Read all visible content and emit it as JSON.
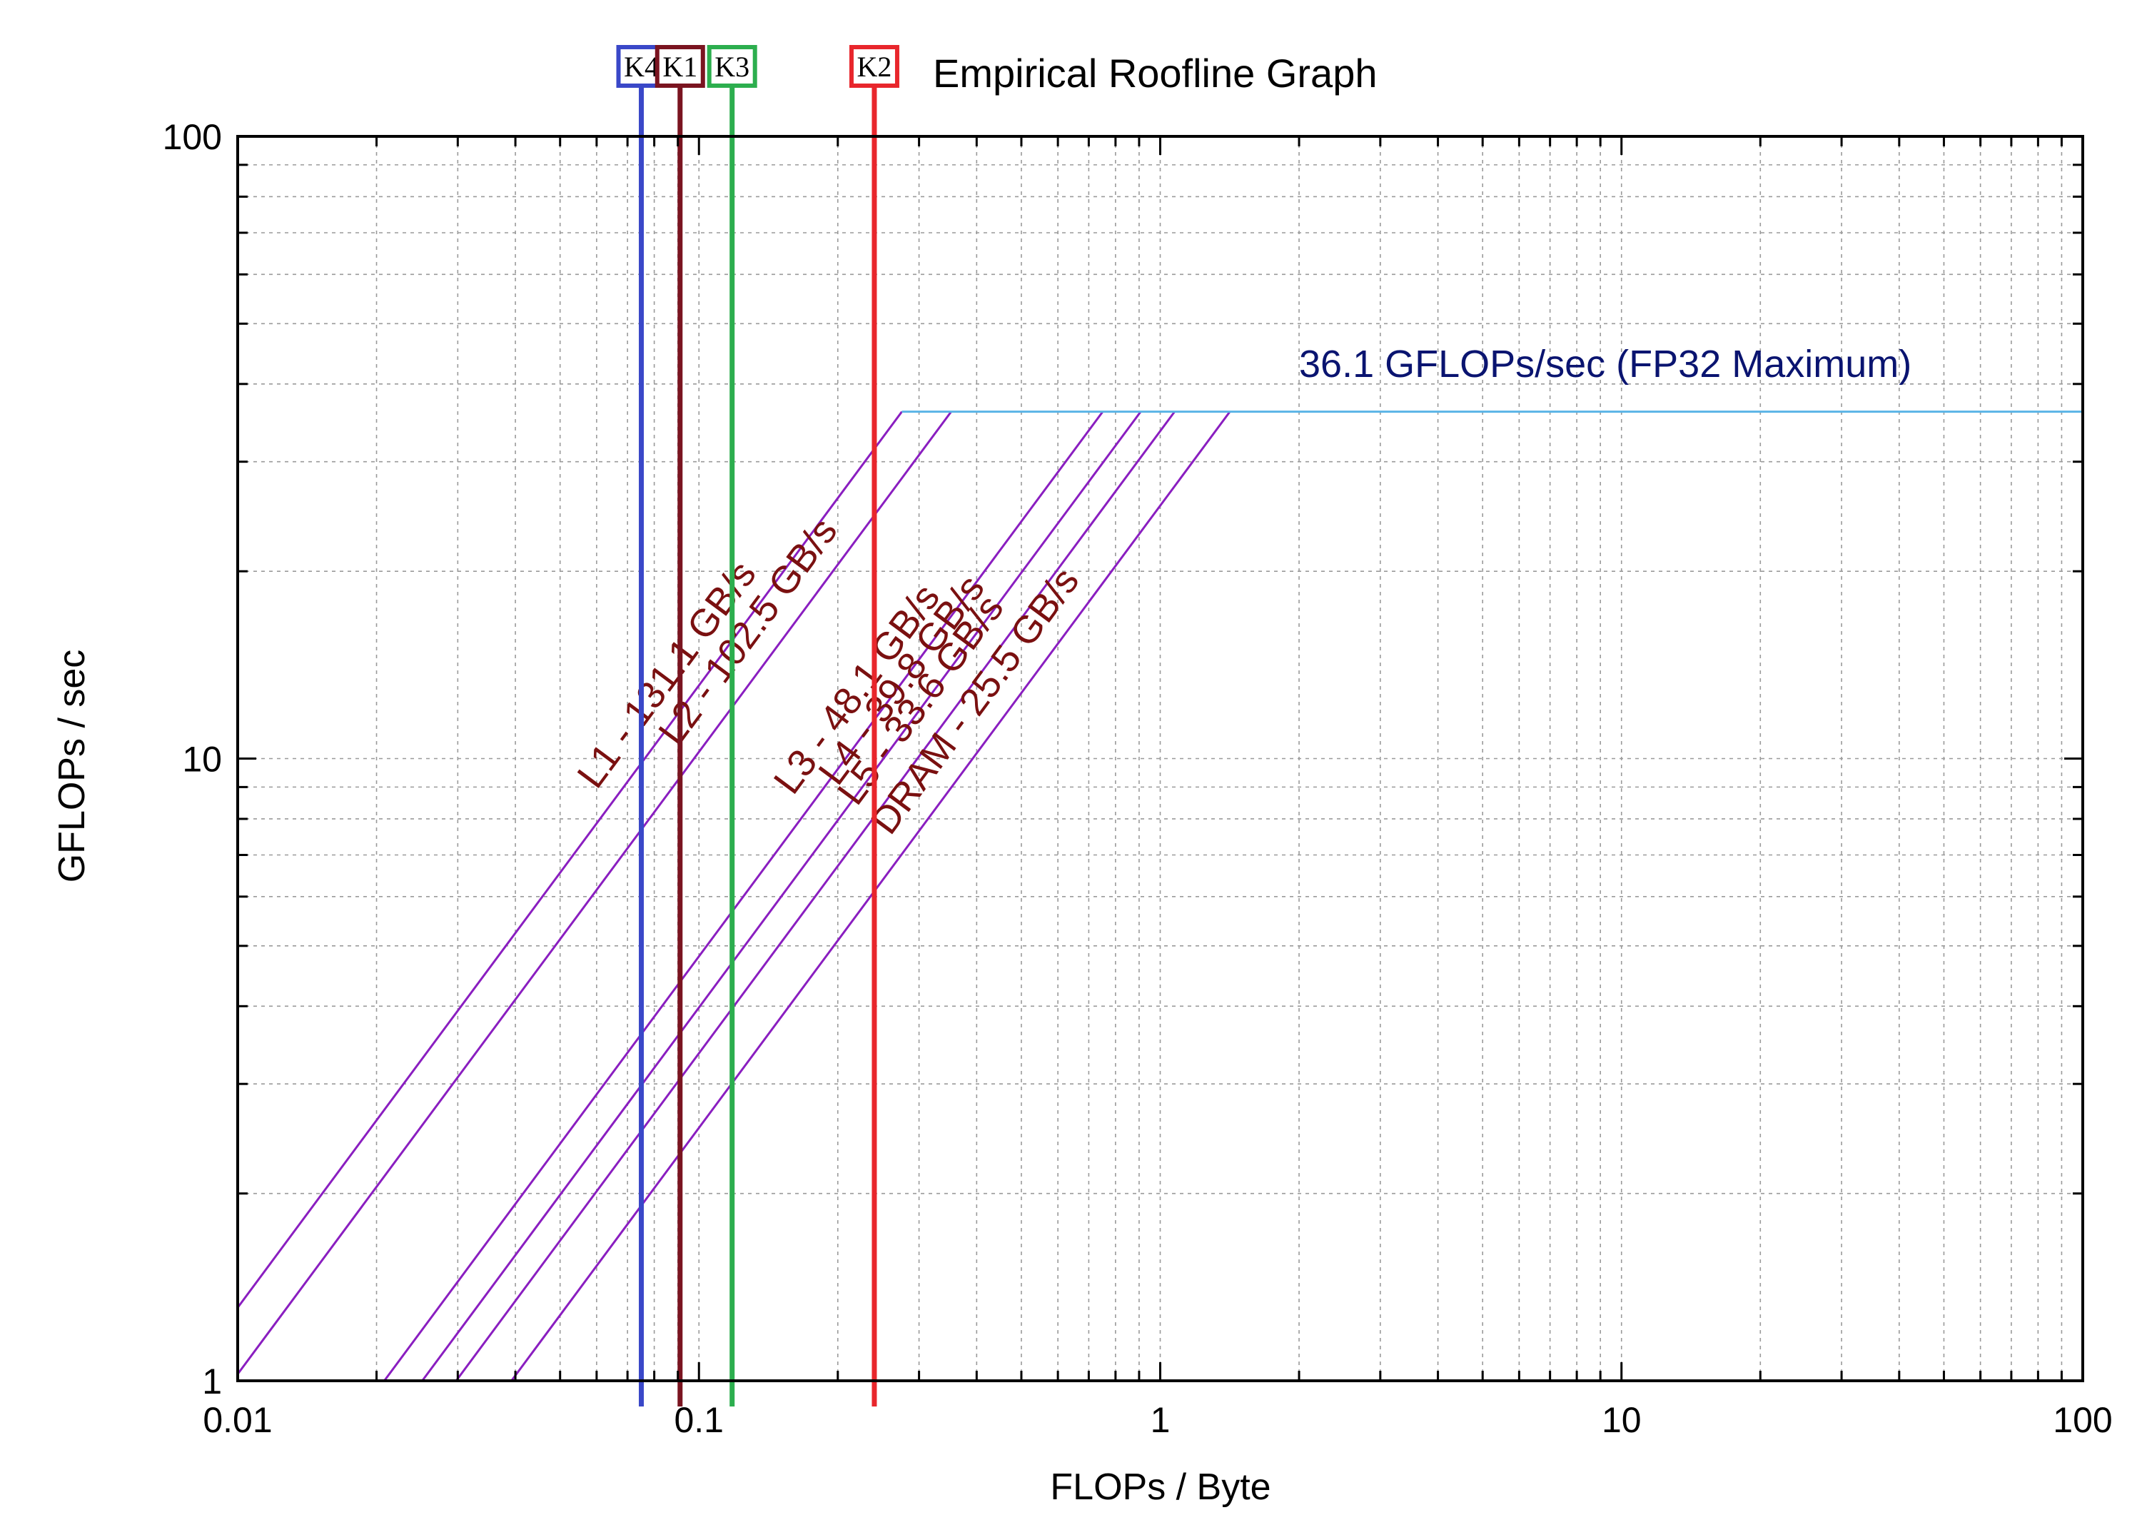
{
  "chart_data": {
    "type": "line",
    "title": "Empirical Roofline Graph",
    "xlabel": "FLOPs / Byte",
    "ylabel": "GFLOPs / sec",
    "xscale": "log",
    "yscale": "log",
    "xlim": [
      0.01,
      100
    ],
    "ylim": [
      1,
      100
    ],
    "grid": true,
    "x_ticks": [
      {
        "value": 0.01,
        "label": "0.01"
      },
      {
        "value": 0.1,
        "label": "0.1"
      },
      {
        "value": 1,
        "label": "1"
      },
      {
        "value": 10,
        "label": "10"
      },
      {
        "value": 100,
        "label": "100"
      }
    ],
    "y_ticks": [
      {
        "value": 1,
        "label": "1"
      },
      {
        "value": 10,
        "label": "10"
      },
      {
        "value": 100,
        "label": "100"
      }
    ],
    "compute_ceiling": {
      "label": "36.1 GFLOPs/sec (FP32 Maximum)",
      "value": 36.1,
      "color": "#5ab4e6"
    },
    "bandwidth_series": [
      {
        "name": "L1 - 131.1 GB/s",
        "bandwidth": 131.1
      },
      {
        "name": "L2 - 102.5 GB/s",
        "bandwidth": 102.5
      },
      {
        "name": "L3 - 48.1 GB/s",
        "bandwidth": 48.1
      },
      {
        "name": "L4 - 39.8 GB/s",
        "bandwidth": 39.8
      },
      {
        "name": "L5 - 33.6 GB/s",
        "bandwidth": 33.6
      },
      {
        "name": "DRAM - 25.5 GB/s",
        "bandwidth": 25.5
      }
    ],
    "kernels": [
      {
        "name": "K4",
        "x": 0.075,
        "color": "#3a48c8"
      },
      {
        "name": "K1",
        "x": 0.091,
        "color": "#7a1420"
      },
      {
        "name": "K3",
        "x": 0.118,
        "color": "#2cae4e"
      },
      {
        "name": "K2",
        "x": 0.24,
        "color": "#e8262c"
      }
    ],
    "colors": {
      "roofline": "#8a1ec0",
      "roof_label": "#7a1010",
      "ceiling_label": "#0a1470",
      "grid": "#9a9a9a"
    }
  }
}
